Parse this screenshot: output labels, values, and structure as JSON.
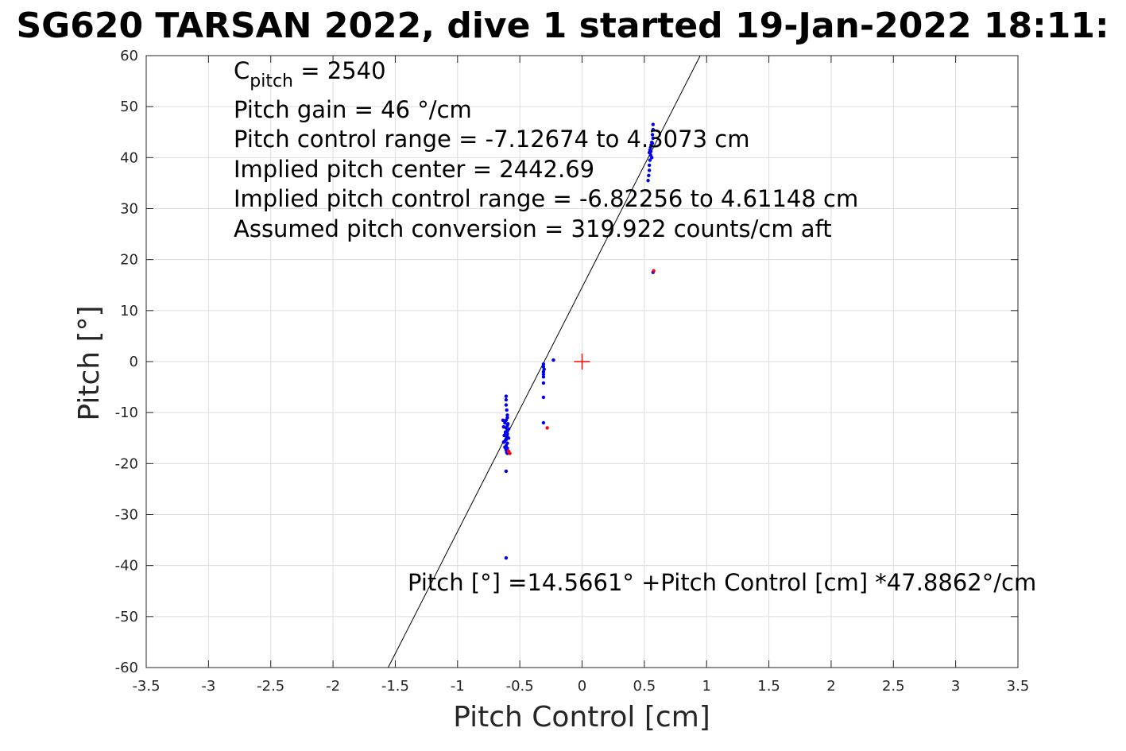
{
  "chart_data": {
    "type": "scatter",
    "title": "SG620 TARSAN 2022, dive 1 started 19-Jan-2022 18:11:",
    "xlabel": "Pitch Control [cm]",
    "ylabel": "Pitch [°]",
    "xlim": [
      -3.5,
      3.5
    ],
    "ylim": [
      -60,
      60
    ],
    "grid": true,
    "x_ticks": [
      -3.5,
      -3,
      -2.5,
      -2,
      -1.5,
      -1,
      -0.5,
      0,
      0.5,
      1,
      1.5,
      2,
      2.5,
      3,
      3.5
    ],
    "y_ticks": [
      -60,
      -50,
      -40,
      -30,
      -20,
      -10,
      0,
      10,
      20,
      30,
      40,
      50,
      60
    ],
    "annotations": {
      "c_pitch_base": "C",
      "c_pitch_sub": "pitch",
      "c_pitch_value": " = 2540",
      "pitch_gain": "Pitch gain = 46 °/cm",
      "pitch_control_range": "Pitch control range = -7.12674 to 4.3073 cm",
      "implied_pitch_center": "Implied pitch center = 2442.69",
      "implied_control_range": "Implied pitch control range = -6.82256 to 4.61148 cm",
      "pitch_conversion": "Assumed pitch conversion = 319.922 counts/cm aft",
      "fit_equation": "Pitch [°] =14.5661° +Pitch Control [cm] *47.8862°/cm"
    },
    "fit_line": {
      "intercept": 14.5661,
      "slope": 47.8862,
      "color": "#000000"
    },
    "center_marker": {
      "x": 0,
      "y": 0,
      "color": "#ff0000"
    },
    "series": [
      {
        "name": "blue",
        "color": "#0000ee",
        "points": [
          [
            0.57,
            46.5
          ],
          [
            0.57,
            45.5
          ],
          [
            0.565,
            44.5
          ],
          [
            0.57,
            43.8
          ],
          [
            0.56,
            43.0
          ],
          [
            0.555,
            42.5
          ],
          [
            0.55,
            42.0
          ],
          [
            0.545,
            41.5
          ],
          [
            0.54,
            41.0
          ],
          [
            0.55,
            40.5
          ],
          [
            0.56,
            40.0
          ],
          [
            0.545,
            39.5
          ],
          [
            0.54,
            38.5
          ],
          [
            0.54,
            37.5
          ],
          [
            0.535,
            36.5
          ],
          [
            0.53,
            35.5
          ],
          [
            0.565,
            42.8
          ],
          [
            0.552,
            41.2
          ],
          [
            0.57,
            17.5
          ],
          [
            -0.23,
            0.3
          ],
          [
            -0.31,
            -0.5
          ],
          [
            -0.31,
            -1.0
          ],
          [
            -0.305,
            -1.5
          ],
          [
            -0.31,
            -2.0
          ],
          [
            -0.31,
            -2.5
          ],
          [
            -0.31,
            -3.0
          ],
          [
            -0.31,
            -4.2
          ],
          [
            -0.31,
            -7.0
          ],
          [
            -0.31,
            -12.0
          ],
          [
            -0.61,
            -6.8
          ],
          [
            -0.61,
            -7.5
          ],
          [
            -0.61,
            -8.5
          ],
          [
            -0.605,
            -9.5
          ],
          [
            -0.6,
            -10.5
          ],
          [
            -0.6,
            -11.0
          ],
          [
            -0.61,
            -11.5
          ],
          [
            -0.62,
            -12.0
          ],
          [
            -0.6,
            -12.5
          ],
          [
            -0.63,
            -12.8
          ],
          [
            -0.61,
            -13.0
          ],
          [
            -0.59,
            -13.2
          ],
          [
            -0.6,
            -13.5
          ],
          [
            -0.615,
            -14.0
          ],
          [
            -0.625,
            -14.5
          ],
          [
            -0.6,
            -14.8
          ],
          [
            -0.59,
            -15.0
          ],
          [
            -0.61,
            -15.3
          ],
          [
            -0.62,
            -15.6
          ],
          [
            -0.6,
            -16.0
          ],
          [
            -0.61,
            -16.5
          ],
          [
            -0.62,
            -16.8
          ],
          [
            -0.6,
            -17.0
          ],
          [
            -0.61,
            -17.3
          ],
          [
            -0.605,
            -17.8
          ],
          [
            -0.6,
            -18.0
          ],
          [
            -0.61,
            -21.5
          ],
          [
            -0.61,
            -38.5
          ],
          [
            -0.635,
            -11.5
          ],
          [
            -0.595,
            -12.2
          ],
          [
            -0.615,
            -13.8
          ],
          [
            -0.6,
            -14.2
          ],
          [
            -0.63,
            -15.8
          ]
        ]
      },
      {
        "name": "red",
        "color": "#ff0000",
        "points": [
          [
            0.575,
            17.8
          ],
          [
            -0.28,
            -13.0
          ],
          [
            -0.59,
            -17.6
          ],
          [
            -0.58,
            -18.0
          ]
        ]
      }
    ]
  }
}
